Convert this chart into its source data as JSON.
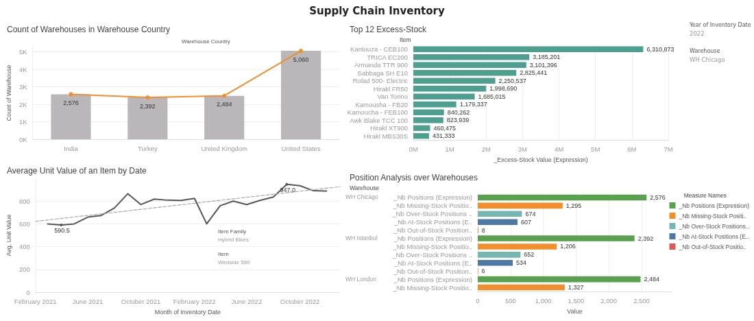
{
  "chart_data": [
    {
      "type": "other",
      "title": "Supply Chain Inventory"
    },
    {
      "type": "bar",
      "title": "Count of Warehouses in Warehouse Country",
      "xlabel": "Warehouse Country",
      "ylabel": "Count of Warehouse",
      "categories": [
        "India",
        "Turkey",
        "United Kingdom",
        "United States"
      ],
      "series": [
        {
          "color": "#bab6ba",
          "values": [
            2576,
            2392,
            2484,
            5060
          ]
        },
        {
          "type": "line",
          "color": "#f28e2b",
          "values": [
            2576,
            2392,
            2484,
            5060
          ],
          "value_labels": [
            "2,576",
            "2,392",
            "2,484",
            "5,060"
          ]
        }
      ],
      "marker": "circle",
      "ylim": [
        0,
        5300
      ],
      "yticks": [
        {
          "value": 0,
          "label": "0K"
        },
        {
          "value": 1000,
          "label": "1K"
        },
        {
          "value": 2000,
          "label": "2K"
        },
        {
          "value": 3000,
          "label": "3K"
        },
        {
          "value": 4000,
          "label": "4K"
        },
        {
          "value": 5000,
          "label": "5K"
        }
      ],
      "grid": "y"
    },
    {
      "type": "bar",
      "orientation": "horizontal",
      "title": "Top 12 Excess-Stock",
      "ylabel": "Item",
      "xlabel": "_Excess-Stock Value (Expression)",
      "categories": [
        "Kantouza - CEB100",
        "TRICA EC200",
        "Armanda TTR 900",
        "Sabbaga SH E10",
        "Rolad 500- Electric",
        "Hirakl FR50",
        "Van Torino",
        "Kamousha - FB20",
        "Kamoucha - FEB100",
        "Awk Blake TCC 100",
        "Hirakl XT900",
        "Hirakl MBS30S"
      ],
      "values": [
        6310873,
        3185201,
        3101396,
        2825441,
        2250537,
        1998690,
        1685015,
        1179337,
        840262,
        823939,
        460475,
        431333
      ],
      "value_labels": [
        "6,310,873",
        "3,185,201",
        "3,101,396",
        "2,825,441",
        "2,250,537",
        "1,998,690",
        "1,685,015",
        "1,179,337",
        "840,262",
        "823,939",
        "460,475",
        "431,333"
      ],
      "color": "#4e9f8f",
      "xlim": [
        0,
        7000000
      ],
      "xticks": [
        {
          "value": 0,
          "label": "0M"
        },
        {
          "value": 1000000,
          "label": "1M"
        },
        {
          "value": 2000000,
          "label": "2M"
        },
        {
          "value": 3000000,
          "label": "3M"
        },
        {
          "value": 4000000,
          "label": "4M"
        },
        {
          "value": 5000000,
          "label": "5M"
        },
        {
          "value": 6000000,
          "label": "6M"
        },
        {
          "value": 7000000,
          "label": "7M"
        }
      ],
      "grid": "x"
    },
    {
      "type": "other",
      "annotations": [
        "Year of Inventory Date",
        "2022",
        "Warehouse",
        "WH Chicago"
      ]
    },
    {
      "type": "line",
      "title": "Average Unit Value of an Item by Date",
      "xlabel": "Month of Inventory Date",
      "ylabel": "Avg. Unit Value",
      "series": [
        {
          "color": "#555555",
          "x": [
            "2021-03",
            "2021-04",
            "2021-05",
            "2021-06",
            "2021-07",
            "2021-08",
            "2021-09",
            "2021-10",
            "2021-11",
            "2021-12",
            "2022-01",
            "2022-02",
            "2022-03",
            "2022-04",
            "2022-05",
            "2022-06",
            "2022-07",
            "2022-08",
            "2022-09",
            "2022-10",
            "2022-11",
            "2022-12"
          ],
          "values": [
            600,
            590.5,
            600,
            659,
            673,
            739,
            865,
            770,
            818,
            808,
            806,
            824,
            600,
            760,
            800,
            770,
            806,
            836,
            947,
            935,
            891,
            889
          ],
          "value_labels": [
            null,
            "590.5",
            null,
            null,
            null,
            null,
            null,
            null,
            null,
            null,
            null,
            null,
            null,
            null,
            null,
            null,
            null,
            null,
            "947.0",
            null,
            null,
            null
          ]
        },
        {
          "color": "#a8a8a8",
          "line_style": "dashed",
          "x": [
            "2021-02",
            "2023-01"
          ],
          "values": [
            622,
            927
          ]
        }
      ],
      "xlim": [
        "2021-02",
        "2023-01"
      ],
      "xticks": [
        {
          "value": "2021-02",
          "label": "February 2021"
        },
        {
          "value": "2021-06",
          "label": "June 2021"
        },
        {
          "value": "2021-10",
          "label": "October 2021"
        },
        {
          "value": "2022-02",
          "label": "February 2022"
        },
        {
          "value": "2022-06",
          "label": "June 2022"
        },
        {
          "value": "2022-10",
          "label": "October 2022"
        }
      ],
      "ylim": [
        0,
        1000
      ],
      "yticks": [
        0,
        200,
        400,
        600,
        800
      ],
      "grid": "y",
      "annotations": [
        "Item Family",
        "Hybrid Bikes",
        "Item",
        "Wedside 560"
      ]
    },
    {
      "type": "bar",
      "orientation": "horizontal",
      "title": "Position Analysis over Warehouses",
      "ylabel": "Warehouse",
      "xlabel": "Value",
      "legend_title": "Measure Names",
      "legend": "right",
      "categories": [
        "_Nb Positions (Expression)",
        "_Nb Missing-Stock Positio..",
        "_Nb Over-Stock Positions ..",
        "_Nb At-Stock Positions (E..",
        "_Nb Out-of-Stock Position..",
        "_Nb Positions (Expression)",
        "_Nb Missing-Stock Positio..",
        "_Nb Over-Stock Positions ..",
        "_Nb At-Stock Positions (E..",
        "_Nb Out-of-Stock Position..",
        "_Nb Positions (Expression)",
        "_Nb Missing-Stock Positio.."
      ],
      "series": [
        {
          "name": "_Nb Positions (Expression)",
          "color": "#59a14f",
          "values": [
            2576,
            null,
            null,
            null,
            null,
            2392,
            null,
            null,
            null,
            null,
            2484,
            null
          ],
          "value_labels": [
            "2,576",
            null,
            null,
            null,
            null,
            "2,392",
            null,
            null,
            null,
            null,
            "2,484",
            null
          ]
        },
        {
          "name": "_Nb Missing-Stock Positi..",
          "color": "#f28e2b",
          "values": [
            null,
            1295,
            null,
            null,
            null,
            null,
            1206,
            null,
            null,
            null,
            null,
            1327
          ],
          "value_labels": [
            null,
            "1,295",
            null,
            null,
            null,
            null,
            "1,206",
            null,
            null,
            null,
            null,
            "1,327"
          ]
        },
        {
          "name": "_Nb Over-Stock Positions..",
          "color": "#76b7b2",
          "values": [
            null,
            null,
            674,
            null,
            null,
            null,
            null,
            652,
            null,
            null,
            null,
            null
          ],
          "value_labels": [
            null,
            null,
            "674",
            null,
            null,
            null,
            null,
            "652",
            null,
            null,
            null,
            null
          ]
        },
        {
          "name": "_Nb At-Stock Positions (E..",
          "color": "#4e79a7",
          "values": [
            null,
            null,
            null,
            607,
            null,
            null,
            null,
            null,
            534,
            null,
            null,
            null
          ],
          "value_labels": [
            null,
            null,
            null,
            "607",
            null,
            null,
            null,
            null,
            "534",
            null,
            null,
            null
          ]
        },
        {
          "name": "_Nb Out-of-Stock Positio..",
          "color": "#e15759",
          "values": [
            null,
            null,
            null,
            null,
            8,
            null,
            null,
            null,
            null,
            6,
            null,
            null
          ],
          "value_labels": [
            null,
            null,
            null,
            null,
            "8",
            null,
            null,
            null,
            null,
            "6",
            null,
            null
          ]
        }
      ],
      "xlim": [
        0,
        2960
      ],
      "xticks": [
        0,
        500,
        {
          "value": 1000,
          "label": "1,000"
        },
        {
          "value": 1500,
          "label": "1,500"
        },
        {
          "value": 2000,
          "label": "2,000"
        },
        {
          "value": 2500,
          "label": "2,500"
        }
      ],
      "grid": "x",
      "annotations": [
        "WH Chicago",
        "WH Istanbul",
        "WH London"
      ]
    }
  ]
}
